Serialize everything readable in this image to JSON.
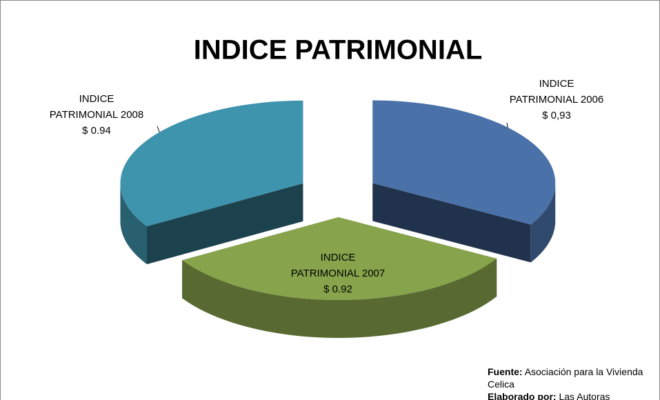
{
  "chart_data": {
    "type": "pie3d",
    "title": "INDICE PATRIMONIAL",
    "categories": [
      "INDICE PATRIMONIAL 2006",
      "INDICE PATRIMONIAL 2007",
      "INDICE PATRIMONIAL 2008"
    ],
    "values": [
      0.93,
      0.92,
      0.94
    ],
    "value_labels": [
      "$ 0,93",
      "$ 0.92",
      "$ 0.94"
    ],
    "colors": [
      "#4a72a8",
      "#87a34c",
      "#3e93ad"
    ],
    "notes": [
      {
        "label": "Fuente:",
        "text": "Asociación para  la Vivienda Celica"
      },
      {
        "label": "Elaborado por:",
        "text": "Las Autoras"
      }
    ]
  }
}
